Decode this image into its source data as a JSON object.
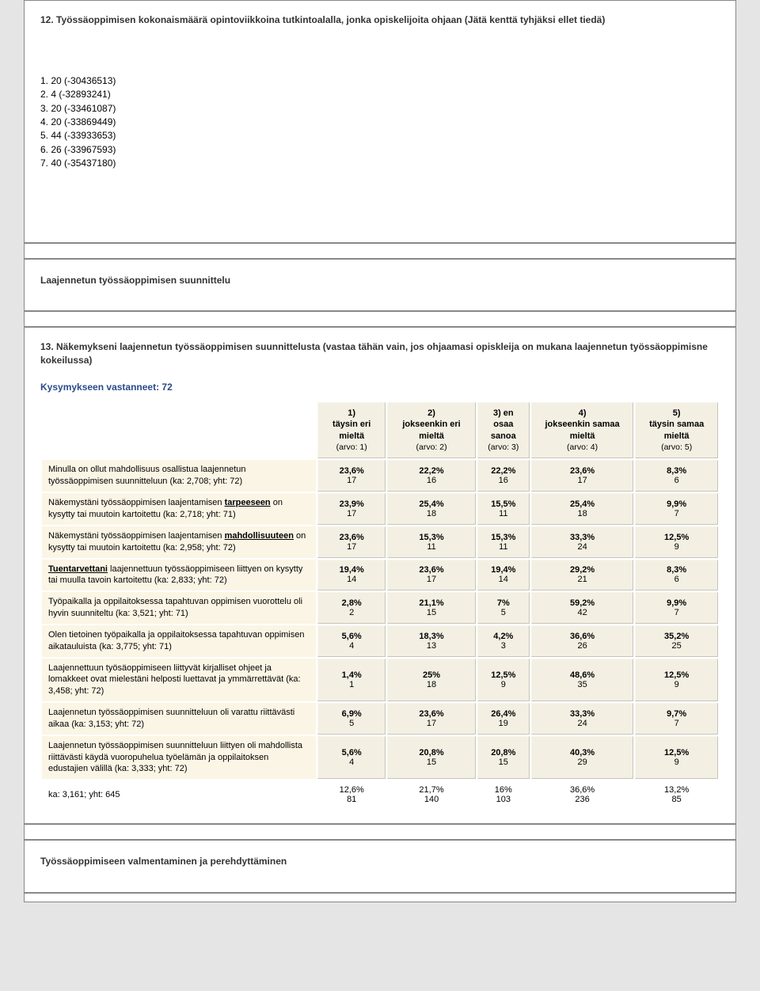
{
  "q12": {
    "title": "12. Työssäoppimisen kokonaismäärä opintoviikkoina tutkintoalalla, jonka opiskelijoita ohjaan (Jätä kenttä tyhjäksi ellet tiedä)",
    "items": [
      "1. 20 (-30436513)",
      "2. 4 (-32893241)",
      "3. 20 (-33461087)",
      "4. 20 (-33869449)",
      "5. 44 (-33933653)",
      "6. 26 (-33967593)",
      "7. 40 (-35437180)"
    ]
  },
  "sectionA": {
    "title": "Laajennetun työssäoppimisen suunnittelu"
  },
  "q13": {
    "title": "13. Näkemykseni laajennetun työssäoppimisen suunnittelusta (vastaa tähän vain, jos ohjaamasi opiskleija on mukana laajennetun työssäoppimisne kokeilussa)",
    "responded": "Kysymykseen vastanneet: 72",
    "columns": [
      {
        "n": "1)",
        "label": "täysin eri mieltä",
        "arvo": "(arvo: 1)"
      },
      {
        "n": "2)",
        "label": "jokseenkin eri mieltä",
        "arvo": "(arvo: 2)"
      },
      {
        "n": "3) en",
        "label": "osaa sanoa",
        "arvo": "(arvo: 3)"
      },
      {
        "n": "4)",
        "label": "jokseenkin samaa mieltä",
        "arvo": "(arvo: 4)"
      },
      {
        "n": "5)",
        "label": "täysin samaa mieltä",
        "arvo": "(arvo: 5)"
      }
    ],
    "rows": [
      {
        "label_html": "Minulla on ollut mahdollisuus osallistua laajennetun työssäoppimisen suunnitteluun (ka: 2,708; yht: 72)",
        "cells": [
          [
            "23,6%",
            "17"
          ],
          [
            "22,2%",
            "16"
          ],
          [
            "22,2%",
            "16"
          ],
          [
            "23,6%",
            "17"
          ],
          [
            "8,3%",
            "6"
          ]
        ]
      },
      {
        "label_html": "Näkemystäni työssäoppimisen laajentamisen <span class='u b'>tarpeeseen</span> on kysytty tai muutoin kartoitettu (ka: 2,718; yht: 71)",
        "cells": [
          [
            "23,9%",
            "17"
          ],
          [
            "25,4%",
            "18"
          ],
          [
            "15,5%",
            "11"
          ],
          [
            "25,4%",
            "18"
          ],
          [
            "9,9%",
            "7"
          ]
        ]
      },
      {
        "label_html": "Näkemystäni työssäoppimisen laajentamisen <span class='u b'>mahdollisuuteen</span> on kysytty tai muutoin kartoitettu (ka: 2,958; yht: 72)",
        "cells": [
          [
            "23,6%",
            "17"
          ],
          [
            "15,3%",
            "11"
          ],
          [
            "15,3%",
            "11"
          ],
          [
            "33,3%",
            "24"
          ],
          [
            "12,5%",
            "9"
          ]
        ]
      },
      {
        "label_html": "<span class='u b'>Tuentarvettani</span> laajennettuun työssäoppimiseen liittyen on kysytty tai muulla tavoin kartoitettu (ka: 2,833; yht: 72)",
        "cells": [
          [
            "19,4%",
            "14"
          ],
          [
            "23,6%",
            "17"
          ],
          [
            "19,4%",
            "14"
          ],
          [
            "29,2%",
            "21"
          ],
          [
            "8,3%",
            "6"
          ]
        ]
      },
      {
        "label_html": "Työpaikalla ja oppilaitoksessa tapahtuvan oppimisen vuorottelu oli hyvin suunniteltu (ka: 3,521; yht: 71)",
        "cells": [
          [
            "2,8%",
            "2"
          ],
          [
            "21,1%",
            "15"
          ],
          [
            "7%",
            "5"
          ],
          [
            "59,2%",
            "42"
          ],
          [
            "9,9%",
            "7"
          ]
        ]
      },
      {
        "label_html": "Olen tietoinen työpaikalla ja oppilaitoksessa tapahtuvan oppimisen aikatauluista (ka: 3,775; yht: 71)",
        "cells": [
          [
            "5,6%",
            "4"
          ],
          [
            "18,3%",
            "13"
          ],
          [
            "4,2%",
            "3"
          ],
          [
            "36,6%",
            "26"
          ],
          [
            "35,2%",
            "25"
          ]
        ]
      },
      {
        "label_html": "Laajennettuun työsäoppimiseen liittyvät kirjalliset ohjeet ja lomakkeet ovat mielestäni helposti luettavat ja ymmärrettävät (ka: 3,458; yht: 72)",
        "cells": [
          [
            "1,4%",
            "1"
          ],
          [
            "25%",
            "18"
          ],
          [
            "12,5%",
            "9"
          ],
          [
            "48,6%",
            "35"
          ],
          [
            "12,5%",
            "9"
          ]
        ]
      },
      {
        "label_html": "Laajennetun työssäoppimisen suunnitteluun oli varattu riittävästi aikaa (ka: 3,153; yht: 72)",
        "cells": [
          [
            "6,9%",
            "5"
          ],
          [
            "23,6%",
            "17"
          ],
          [
            "26,4%",
            "19"
          ],
          [
            "33,3%",
            "24"
          ],
          [
            "9,7%",
            "7"
          ]
        ]
      },
      {
        "label_html": "Laajennetun työssäoppimisen suunnitteluun liittyen oli mahdollista riittävästi käydä vuoropuhelua työelämän ja oppilaitoksen edustajien välillä (ka: 3,333; yht: 72)",
        "cells": [
          [
            "5,6%",
            "4"
          ],
          [
            "20,8%",
            "15"
          ],
          [
            "20,8%",
            "15"
          ],
          [
            "40,3%",
            "29"
          ],
          [
            "12,5%",
            "9"
          ]
        ]
      }
    ],
    "summary": {
      "label": "ka: 3,161; yht: 645",
      "cells": [
        [
          "12,6%",
          "81"
        ],
        [
          "21,7%",
          "140"
        ],
        [
          "16%",
          "103"
        ],
        [
          "36,6%",
          "236"
        ],
        [
          "13,2%",
          "85"
        ]
      ]
    }
  },
  "sectionB": {
    "title": "Työssäoppimiseen valmentaminen ja perehdyttäminen"
  }
}
